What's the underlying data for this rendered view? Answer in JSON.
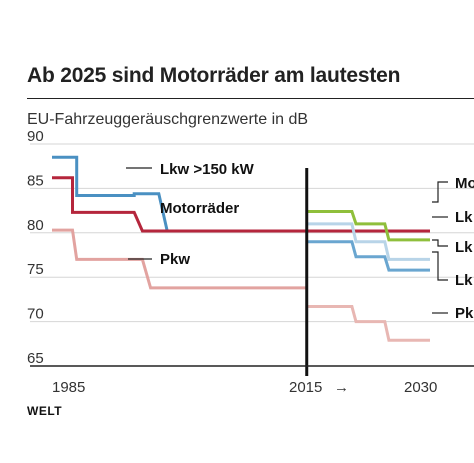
{
  "title": "Ab 2025 sind Motorräder am lautesten",
  "subtitle": "EU-Fahrzeuggeräuschgrenzwerte in dB",
  "brand": "WELT",
  "chart_data": {
    "type": "line",
    "ylim": [
      65,
      90
    ],
    "xlim": [
      1984,
      2030
    ],
    "y_ticks": [
      "90",
      "85",
      "80",
      "75",
      "70",
      "65"
    ],
    "x_tick_labels": [
      "1985",
      "2015",
      "2030"
    ],
    "x_arrow": "→",
    "divider_year": 2015,
    "series": [
      {
        "name": "Lkw >150 kW",
        "color": "#4a90c2",
        "points": [
          [
            1984,
            88.5
          ],
          [
            1987,
            88.5
          ],
          [
            1987,
            84.2
          ],
          [
            1994,
            84.2
          ],
          [
            1994,
            84.4
          ],
          [
            1997,
            84.4
          ],
          [
            1998,
            80.3
          ]
        ]
      },
      {
        "name": "Motorräder",
        "color": "#b5263c",
        "points": [
          [
            1984,
            86.2
          ],
          [
            1986.5,
            86.2
          ],
          [
            1986.5,
            82.3
          ],
          [
            1994,
            82.3
          ],
          [
            1995,
            80.2
          ],
          [
            2030,
            80.2
          ]
        ]
      },
      {
        "name": "Pkw",
        "color": "#e2a3a0",
        "points": [
          [
            1984,
            80.3
          ],
          [
            1986.5,
            80.3
          ],
          [
            1987,
            77
          ],
          [
            1995,
            77
          ],
          [
            1996,
            73.8
          ],
          [
            2015,
            73.8
          ]
        ]
      },
      {
        "name": "",
        "color": "#8fbf3b",
        "points": [
          [
            2015,
            82.4
          ],
          [
            2020.5,
            82.4
          ],
          [
            2021,
            81
          ],
          [
            2024.5,
            81
          ],
          [
            2025,
            79.2
          ],
          [
            2030,
            79.2
          ]
        ]
      },
      {
        "name": "",
        "color": "#b8d4e8",
        "points": [
          [
            2015,
            81
          ],
          [
            2020.5,
            81
          ],
          [
            2021,
            79
          ],
          [
            2024.5,
            79
          ],
          [
            2025,
            77
          ],
          [
            2030,
            77
          ]
        ]
      },
      {
        "name": "",
        "color": "#6aa6d0",
        "points": [
          [
            2015,
            79
          ],
          [
            2020.5,
            79
          ],
          [
            2021,
            77.3
          ],
          [
            2024.5,
            77.3
          ],
          [
            2025,
            75.8
          ],
          [
            2030,
            75.8
          ]
        ]
      },
      {
        "name": "",
        "color": "#e8b7b3",
        "points": [
          [
            2015,
            71.7
          ],
          [
            2020.5,
            71.7
          ],
          [
            2021,
            70
          ],
          [
            2024.5,
            70
          ],
          [
            2025,
            67.9
          ],
          [
            2030,
            67.9
          ]
        ]
      }
    ],
    "inline_labels": [
      "Lkw >150 kW",
      "Motorräder",
      "Pkw"
    ],
    "right_labels": [
      "Mo",
      "Lk",
      "Lk",
      "Lk",
      "Pk"
    ]
  }
}
